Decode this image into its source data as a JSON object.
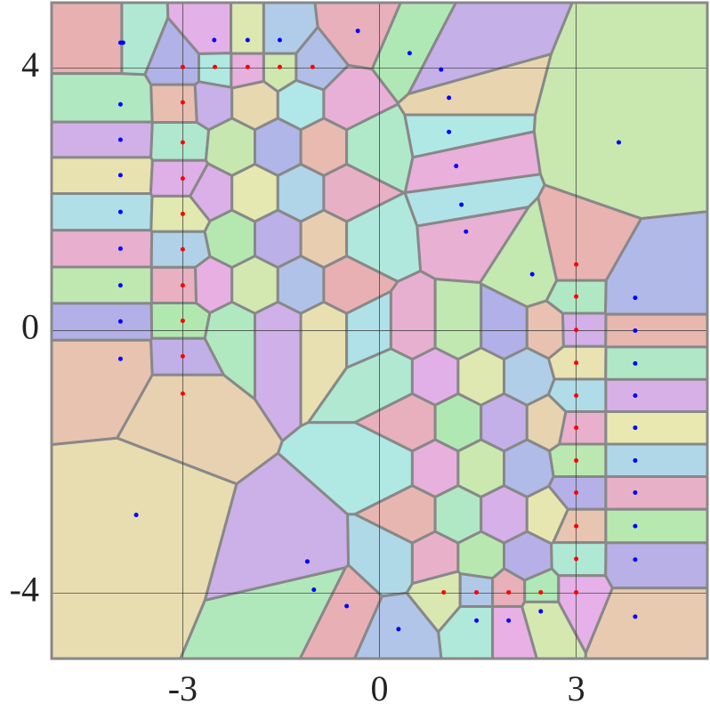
{
  "chart_data": {
    "type": "voronoi",
    "xlim": [
      -5,
      5
    ],
    "ylim": [
      -5,
      5
    ],
    "xticks": [
      -3,
      0,
      3
    ],
    "yticks": [
      -4,
      0,
      4
    ],
    "grid": true,
    "series": [
      {
        "color": "#0000ff",
        "x": [
          -3.95,
          -3.95,
          -3.95,
          -3.95,
          -3.95,
          -3.95,
          -3.95,
          -3.95,
          -3.95,
          -3.91,
          -2.52,
          -2.01,
          -1.52,
          -0.33,
          0.46,
          0.94,
          1.06,
          1.06,
          1.17,
          3.65,
          3.9,
          3.9,
          3.9,
          3.9,
          3.9,
          3.9,
          3.9,
          3.9,
          3.9,
          3.9,
          1.48,
          1.97,
          2.46,
          0.29,
          -0.5,
          -1.0,
          -1.1,
          -3.71,
          1.25,
          1.32,
          2.33
        ],
        "y": [
          4.39,
          3.45,
          2.91,
          2.37,
          1.81,
          1.25,
          0.69,
          0.14,
          -0.43,
          4.39,
          4.43,
          4.43,
          4.43,
          4.57,
          4.23,
          3.98,
          3.55,
          3.03,
          2.51,
          2.87,
          0.5,
          0.0,
          -0.5,
          -0.99,
          -1.48,
          -1.98,
          -2.47,
          -2.98,
          -3.49,
          -4.36,
          -4.42,
          -4.42,
          -4.28,
          -4.55,
          -4.2,
          -3.95,
          -3.52,
          -2.81,
          1.92,
          1.51,
          0.86
        ]
      },
      {
        "color": "#ff0000",
        "x": [
          -3,
          -3,
          -3,
          -3,
          -3,
          -3,
          -3,
          -3,
          -3,
          -3,
          -2.51,
          -2.01,
          -1.52,
          -1.02,
          3,
          3,
          3,
          3,
          3,
          3,
          3,
          3,
          3,
          3,
          3,
          0.98,
          1.48,
          1.97,
          2.46
        ],
        "y": [
          4.02,
          3.48,
          2.87,
          2.32,
          1.78,
          1.24,
          0.69,
          0.15,
          -0.39,
          -0.96,
          4.02,
          4.02,
          4.02,
          4.02,
          1.01,
          0.52,
          0.01,
          -0.49,
          -0.99,
          -1.48,
          -1.98,
          -2.47,
          -2.98,
          -3.48,
          -3.99,
          -3.99,
          -3.99,
          -3.99,
          -3.99
        ]
      },
      {
        "marker": "none",
        "x": [
          -2.6,
          -1.9,
          -1.2,
          -0.5,
          -2.25,
          -1.55,
          -0.85,
          -0.15,
          -2.6,
          -1.9,
          -1.2,
          -0.5,
          -2.25,
          -1.55,
          -0.85,
          -0.15,
          -2.6,
          -1.9,
          -1.2,
          -0.5,
          -2.25,
          -1.55,
          -0.85,
          -0.15,
          0.5,
          1.2,
          1.9,
          2.6,
          0.15,
          0.85,
          1.55,
          2.25,
          0.5,
          1.2,
          1.9,
          2.6,
          0.15,
          0.85,
          1.55,
          2.25,
          0.5,
          1.2,
          1.9,
          2.6,
          0.15,
          0.85,
          1.55,
          2.25
        ],
        "y": [
          3.5,
          3.5,
          3.5,
          3.5,
          2.8,
          2.8,
          2.8,
          2.8,
          2.1,
          2.1,
          2.1,
          2.1,
          1.4,
          1.4,
          1.4,
          1.4,
          0.7,
          0.7,
          0.7,
          0.7,
          0.0,
          0.0,
          0.0,
          0.0,
          0.0,
          0.0,
          0.0,
          0.0,
          -0.7,
          -0.7,
          -0.7,
          -0.7,
          -1.4,
          -1.4,
          -1.4,
          -1.4,
          -2.1,
          -2.1,
          -2.1,
          -2.1,
          -2.8,
          -2.8,
          -2.8,
          -2.8,
          -3.5,
          -3.5,
          -3.5,
          -3.5
        ]
      }
    ]
  }
}
